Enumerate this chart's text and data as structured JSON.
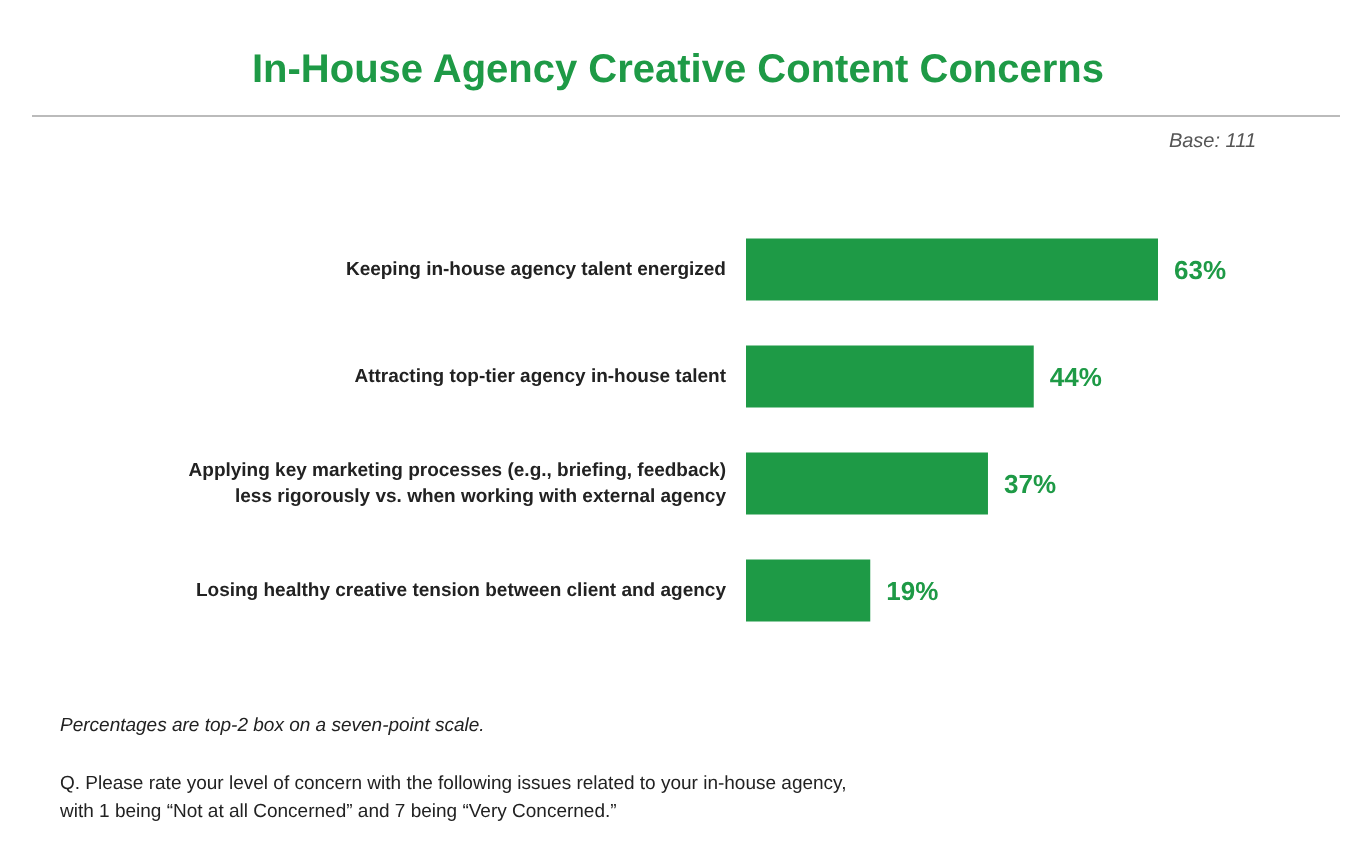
{
  "chart_data": {
    "type": "bar",
    "orientation": "horizontal",
    "title": "In-House Agency Creative Content Concerns",
    "categories": [
      "Keeping in-house agency talent energized",
      "Attracting top-tier agency in-house talent",
      "Applying key marketing processes (e.g., briefing, feedback)\nless rigorously vs. when working with external agency",
      "Losing healthy creative tension between client and agency"
    ],
    "values": [
      63,
      44,
      37,
      19
    ],
    "color": "#1e9a46",
    "value_labels": [
      "63%",
      "44%",
      "37%",
      "19%"
    ],
    "annotations": [
      "Base: 111",
      "Percentages are top-2 box on a seven-point scale.",
      "Q. Please rate your level of concern with the following issues related to your in-house agency,\nwith 1 being “Not at all Concerned” and 7 being “Very Concerned.”"
    ]
  }
}
